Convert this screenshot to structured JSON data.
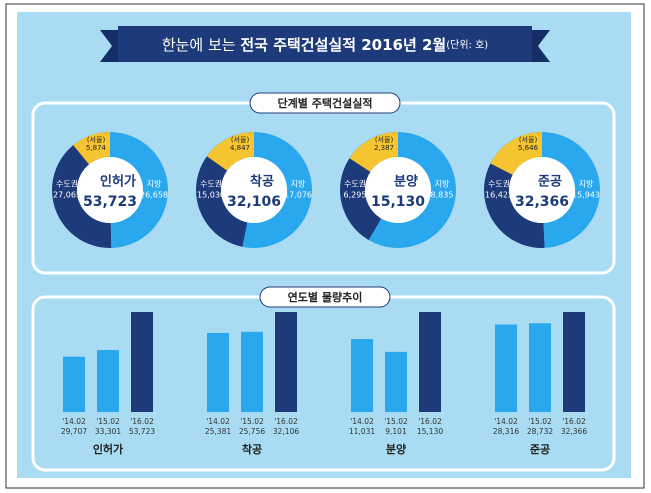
{
  "header": {
    "lead": "한눈에 보는",
    "title": "전국 주택건설실적 2016년 2월",
    "unit": "(단위: 호)"
  },
  "sections": [
    "단계별 주택건설실적",
    "연도별 물량추이"
  ],
  "chart_data": [
    {
      "type": "pie",
      "title": "인허가",
      "total": 53723,
      "total_label": "53,723",
      "categories": [
        "수도권",
        "(서울)",
        "지방"
      ],
      "values": [
        27065,
        5874,
        26658
      ],
      "value_labels": [
        "27,065",
        "5,874",
        "26,658"
      ],
      "colors": [
        "#1d3a7a",
        "#f5c430",
        "#2aa8ee"
      ]
    },
    {
      "type": "pie",
      "title": "착공",
      "total": 32106,
      "total_label": "32,106",
      "categories": [
        "수도권",
        "(서울)",
        "지방"
      ],
      "values": [
        15030,
        4847,
        17076
      ],
      "value_labels": [
        "15,030",
        "4,847",
        "17,076"
      ],
      "colors": [
        "#1d3a7a",
        "#f5c430",
        "#2aa8ee"
      ]
    },
    {
      "type": "pie",
      "title": "분양",
      "total": 15130,
      "total_label": "15,130",
      "categories": [
        "수도권",
        "(서울)",
        "지방"
      ],
      "values": [
        6295,
        2387,
        8835
      ],
      "value_labels": [
        "6,295",
        "2,387",
        "8,835"
      ],
      "colors": [
        "#1d3a7a",
        "#f5c430",
        "#2aa8ee"
      ]
    },
    {
      "type": "pie",
      "title": "준공",
      "total": 32366,
      "total_label": "32,366",
      "categories": [
        "수도권",
        "(서울)",
        "지방"
      ],
      "values": [
        16423,
        5646,
        15943
      ],
      "value_labels": [
        "16,423",
        "5,646",
        "15,943"
      ],
      "colors": [
        "#1d3a7a",
        "#f5c430",
        "#2aa8ee"
      ]
    },
    {
      "type": "bar",
      "title": "인허가",
      "categories": [
        "'14.02",
        "'15.02",
        "'16.02"
      ],
      "values": [
        29707,
        33301,
        53723
      ],
      "value_labels": [
        "29,707",
        "33,301",
        "53,723"
      ],
      "colors": [
        "#2aa8ee",
        "#2aa8ee",
        "#1d3a7a"
      ]
    },
    {
      "type": "bar",
      "title": "착공",
      "categories": [
        "'14.02",
        "'15.02",
        "'16.02"
      ],
      "values": [
        25381,
        25756,
        32106
      ],
      "value_labels": [
        "25,381",
        "25,756",
        "32,106"
      ],
      "colors": [
        "#2aa8ee",
        "#2aa8ee",
        "#1d3a7a"
      ]
    },
    {
      "type": "bar",
      "title": "분양",
      "categories": [
        "'14.02",
        "'15.02",
        "'16.02"
      ],
      "values": [
        11031,
        9101,
        15130
      ],
      "value_labels": [
        "11,031",
        "9,101",
        "15,130"
      ],
      "colors": [
        "#2aa8ee",
        "#2aa8ee",
        "#1d3a7a"
      ]
    },
    {
      "type": "bar",
      "title": "준공",
      "categories": [
        "'14.02",
        "'15.02",
        "'16.02"
      ],
      "values": [
        28316,
        28732,
        32366
      ],
      "value_labels": [
        "28,316",
        "28,732",
        "32,366"
      ],
      "colors": [
        "#2aa8ee",
        "#2aa8ee",
        "#1d3a7a"
      ]
    }
  ]
}
